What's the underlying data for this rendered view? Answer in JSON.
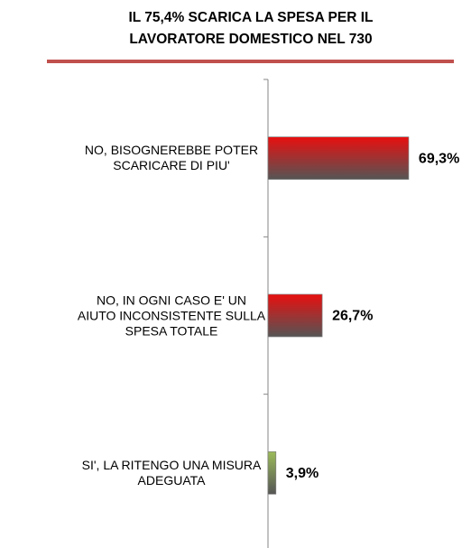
{
  "chart_data": {
    "type": "hbar",
    "title": [
      "IL 75,4% SCARICA LA SPESA PER IL",
      "LAVORATORE DOMESTICO NEL 730"
    ],
    "categories": [
      "NO, BISOGNEREBBE POTER\nSCARICARE DI PIU'",
      "NO, IN OGNI CASO E' UN\nAIUTO INCONSISTENTE SULLA\nSPESA TOTALE",
      "SI', LA RITENGO UNA MISURA\nADEGUATA"
    ],
    "values": [
      69.3,
      26.7,
      3.9
    ],
    "value_labels": [
      "69,3%",
      "26,7%",
      "3,9%"
    ],
    "colors": [
      "#e80f0f",
      "#e80f0f",
      "#9bbb59"
    ],
    "xlim": [
      0,
      100
    ]
  }
}
